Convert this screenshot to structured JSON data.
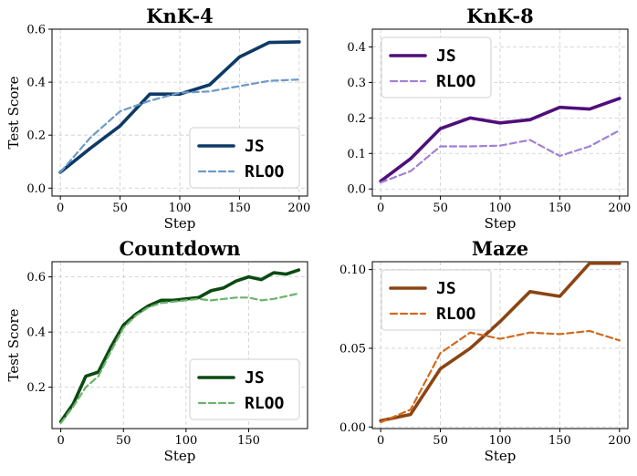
{
  "chart_data": [
    {
      "type": "line",
      "title": "KnK-4",
      "xlabel": "Step",
      "ylabel": "Test Score",
      "xlim": [
        -7,
        207
      ],
      "ylim": [
        -0.03,
        0.6
      ],
      "xticks": [
        0,
        50,
        100,
        150,
        200
      ],
      "yticks": [
        0.0,
        0.2,
        0.4,
        0.6
      ],
      "ytick_labels": [
        "0.0",
        "0.2",
        "0.4",
        "0.6"
      ],
      "grid": true,
      "legend": "lower-right",
      "series": [
        {
          "name": "JS",
          "color": "#0d3a66",
          "style": "solid",
          "x": [
            0,
            25,
            50,
            75,
            100,
            125,
            150,
            175,
            200
          ],
          "y": [
            0.06,
            0.15,
            0.235,
            0.355,
            0.355,
            0.39,
            0.495,
            0.55,
            0.552
          ]
        },
        {
          "name": "RLOO",
          "color": "#6b9ac8",
          "style": "dashed",
          "x": [
            0,
            25,
            50,
            75,
            100,
            125,
            150,
            175,
            200
          ],
          "y": [
            0.06,
            0.19,
            0.29,
            0.33,
            0.36,
            0.365,
            0.385,
            0.405,
            0.41
          ]
        }
      ]
    },
    {
      "type": "line",
      "title": "KnK-8",
      "xlabel": "Step",
      "ylabel": "",
      "xlim": [
        -7,
        207
      ],
      "ylim": [
        -0.02,
        0.45
      ],
      "xticks": [
        0,
        50,
        100,
        150,
        200
      ],
      "yticks": [
        0.0,
        0.1,
        0.2,
        0.3,
        0.4
      ],
      "ytick_labels": [
        "0.0",
        "0.1",
        "0.2",
        "0.3",
        "0.4"
      ],
      "grid": true,
      "legend": "upper-left",
      "series": [
        {
          "name": "JS",
          "color": "#4f0f7a",
          "style": "solid",
          "x": [
            0,
            25,
            50,
            75,
            100,
            125,
            150,
            175,
            200
          ],
          "y": [
            0.022,
            0.085,
            0.17,
            0.2,
            0.186,
            0.195,
            0.23,
            0.225,
            0.255
          ]
        },
        {
          "name": "RLOO",
          "color": "#a27fd8",
          "style": "dashed",
          "x": [
            0,
            25,
            50,
            75,
            100,
            125,
            150,
            175,
            200
          ],
          "y": [
            0.018,
            0.05,
            0.12,
            0.12,
            0.122,
            0.138,
            0.093,
            0.12,
            0.165
          ]
        }
      ]
    },
    {
      "type": "line",
      "title": "Countdown",
      "xlabel": "Step",
      "ylabel": "Test Score",
      "xlim": [
        -7,
        197
      ],
      "ylim": [
        0.05,
        0.655
      ],
      "xticks": [
        0,
        50,
        100,
        150
      ],
      "yticks": [
        0.2,
        0.4,
        0.6
      ],
      "ytick_labels": [
        "0.2",
        "0.4",
        "0.6"
      ],
      "grid": true,
      "legend": "lower-right",
      "series": [
        {
          "name": "JS",
          "color": "#0b4a10",
          "style": "solid",
          "x": [
            0,
            10,
            20,
            30,
            40,
            50,
            60,
            70,
            80,
            90,
            100,
            110,
            120,
            130,
            140,
            150,
            160,
            170,
            180,
            190
          ],
          "y": [
            0.075,
            0.14,
            0.24,
            0.255,
            0.345,
            0.425,
            0.465,
            0.495,
            0.515,
            0.515,
            0.52,
            0.525,
            0.55,
            0.56,
            0.585,
            0.6,
            0.59,
            0.615,
            0.61,
            0.625
          ]
        },
        {
          "name": "RLOO",
          "color": "#6db36d",
          "style": "dashed",
          "x": [
            0,
            10,
            20,
            30,
            40,
            50,
            60,
            70,
            80,
            90,
            100,
            110,
            120,
            130,
            140,
            150,
            160,
            170,
            180,
            190
          ],
          "y": [
            0.07,
            0.13,
            0.2,
            0.24,
            0.33,
            0.415,
            0.46,
            0.49,
            0.505,
            0.51,
            0.515,
            0.52,
            0.515,
            0.52,
            0.525,
            0.525,
            0.515,
            0.52,
            0.53,
            0.54
          ]
        }
      ]
    },
    {
      "type": "line",
      "title": "Maze",
      "xlabel": "Step",
      "ylabel": "",
      "xlim": [
        -7,
        207
      ],
      "ylim": [
        -0.001,
        0.105
      ],
      "xticks": [
        0,
        50,
        100,
        150,
        200
      ],
      "yticks": [
        0.0,
        0.05,
        0.1
      ],
      "ytick_labels": [
        "0.00",
        "0.05",
        "0.10"
      ],
      "grid": true,
      "legend": "upper-left",
      "series": [
        {
          "name": "JS",
          "color": "#8b4513",
          "style": "solid",
          "x": [
            0,
            25,
            50,
            75,
            100,
            125,
            150,
            175,
            200
          ],
          "y": [
            0.004,
            0.008,
            0.037,
            0.05,
            0.067,
            0.086,
            0.083,
            0.104,
            0.104
          ]
        },
        {
          "name": "RLOO",
          "color": "#d2691e",
          "style": "dashed",
          "x": [
            0,
            25,
            50,
            75,
            100,
            125,
            150,
            175,
            200
          ],
          "y": [
            0.003,
            0.011,
            0.047,
            0.06,
            0.056,
            0.06,
            0.059,
            0.061,
            0.055
          ]
        }
      ]
    }
  ]
}
